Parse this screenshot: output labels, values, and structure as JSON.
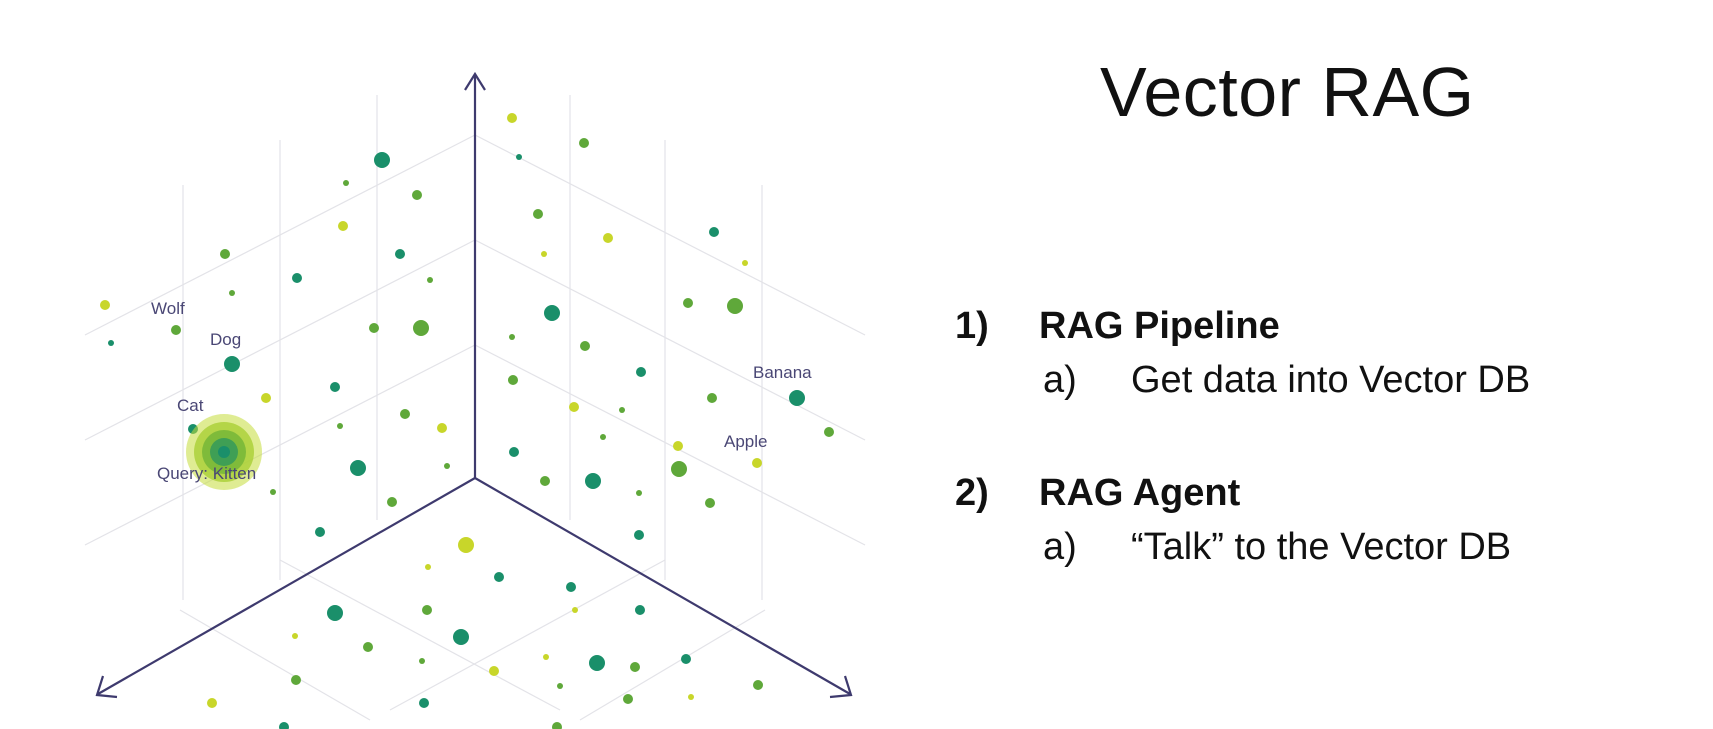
{
  "slide": {
    "title": "Vector RAG",
    "sections": [
      {
        "number": "1)",
        "heading": "RAG Pipeline",
        "sub_letter": "a)",
        "sub_text": "Get data into Vector DB"
      },
      {
        "number": "2)",
        "heading": "RAG Agent",
        "sub_letter": "a)",
        "sub_text": "“Talk” to the Vector DB"
      }
    ]
  },
  "diagram": {
    "labels": {
      "wolf": "Wolf",
      "dog": "Dog",
      "cat": "Cat",
      "query": "Query: Kitten",
      "banana": "Banana",
      "apple": "Apple"
    },
    "colors": {
      "axis": "#3e3a6e",
      "dark_green": "#1a8f6a",
      "mid_green": "#5fa83a",
      "yellow_green": "#c8d62a",
      "query_glow": "#b7d434"
    }
  }
}
